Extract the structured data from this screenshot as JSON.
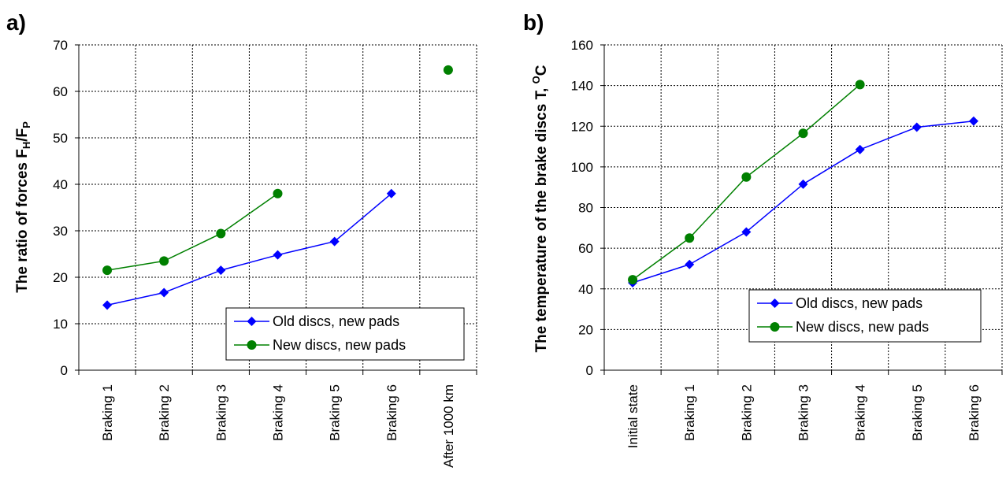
{
  "panels": {
    "a": {
      "label": "a)"
    },
    "b": {
      "label": "b)"
    }
  },
  "chart_data": [
    {
      "type": "line",
      "panel": "a)",
      "title": "",
      "ylabel_parts": {
        "main": "The ratio of forces F",
        "sub1": "H",
        "mid": "/F",
        "sub2": "P"
      },
      "categories": [
        "Braking 1",
        "Braking 2",
        "Braking 3",
        "Braking 4",
        "Braking 5",
        "Braking 6",
        "After 1000 km"
      ],
      "ylim": [
        0,
        70
      ],
      "yticks": [
        0,
        10,
        20,
        30,
        40,
        50,
        60,
        70
      ],
      "grid": true,
      "legend_position": "lower-right",
      "series": [
        {
          "name": "Old discs, new pads",
          "color": "#0000ff",
          "marker": "diamond",
          "values": [
            14,
            16.7,
            21.5,
            24.8,
            27.7,
            38,
            null
          ]
        },
        {
          "name": "New discs, new pads",
          "color": "#008000",
          "marker": "circle",
          "values": [
            21.5,
            23.5,
            29.4,
            38,
            null,
            null,
            64.6
          ]
        }
      ]
    },
    {
      "type": "line",
      "panel": "b)",
      "title": "",
      "ylabel_parts": {
        "main": "The temperature of the brake discs T, ",
        "sup": "O",
        "unit": "C"
      },
      "categories": [
        "Initial state",
        "Braking 1",
        "Braking 2",
        "Braking 3",
        "Braking 4",
        "Braking 5",
        "Braking 6"
      ],
      "ylim": [
        0,
        160
      ],
      "yticks": [
        0,
        20,
        40,
        60,
        80,
        100,
        120,
        140,
        160
      ],
      "grid": true,
      "legend_position": "lower-right",
      "series": [
        {
          "name": "Old discs, new pads",
          "color": "#0000ff",
          "marker": "diamond",
          "values": [
            43,
            52,
            68,
            91.5,
            108.5,
            119.5,
            122.5
          ]
        },
        {
          "name": "New discs, new pads",
          "color": "#008000",
          "marker": "circle",
          "values": [
            44.5,
            65,
            95,
            116.5,
            140.5,
            null,
            null
          ]
        }
      ]
    }
  ]
}
